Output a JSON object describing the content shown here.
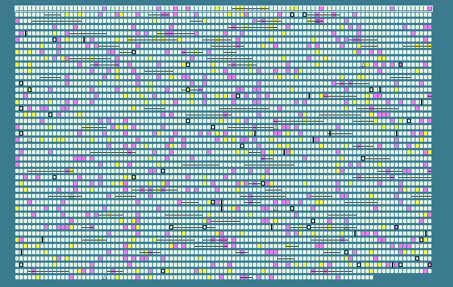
{
  "board": {
    "rows": 44,
    "columns": 100,
    "last_row_columns": 86,
    "colors": {
      "background": "#3b7a8f",
      "empty": "#dff3e6",
      "pink": "#f07cf0",
      "yellow": "#f5f542",
      "marker": "#111111"
    },
    "cell_types": [
      "empty-tile",
      "pink-tile",
      "yellow-tile",
      "dash-tile",
      "square-marker",
      "bar-marker",
      "triangle-marker"
    ]
  }
}
